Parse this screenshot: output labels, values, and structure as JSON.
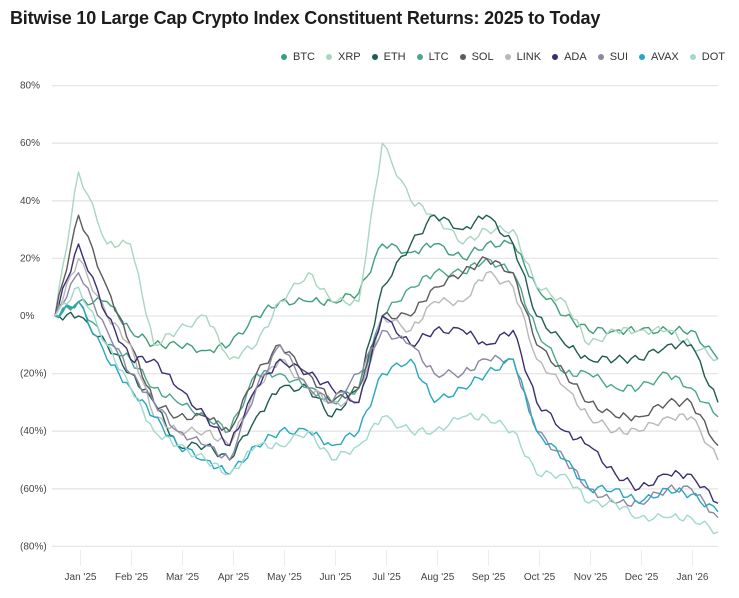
{
  "chart_data": {
    "type": "line",
    "title": "Bitwise 10 Large Cap Crypto Index Constituent Returns: 2025 to Today",
    "xlabel": "",
    "ylabel": "",
    "ylim": [
      -80,
      80
    ],
    "y_ticks": [
      80,
      60,
      40,
      20,
      0,
      -20,
      -40,
      -60,
      -80
    ],
    "y_tick_labels": [
      "80%",
      "60%",
      "40%",
      "20%",
      "0%",
      "(20%)",
      "(40%)",
      "(60%)",
      "(80%)"
    ],
    "x_tick_labels": [
      "Jan '25",
      "Feb '25",
      "Mar '25",
      "Apr '25",
      "May '25",
      "Jun '25",
      "Jul '25",
      "Aug '25",
      "Sep '25",
      "Oct '25",
      "Nov '25",
      "Dec '25",
      "Jan '26"
    ],
    "grid": "horizontal",
    "legend_position": "top-right",
    "x": [
      "2025-01-01",
      "2025-01-15",
      "2025-02-01",
      "2025-02-15",
      "2025-03-01",
      "2025-03-15",
      "2025-04-01",
      "2025-04-15",
      "2025-05-01",
      "2025-05-15",
      "2025-06-01",
      "2025-06-15",
      "2025-07-01",
      "2025-07-15",
      "2025-08-01",
      "2025-08-15",
      "2025-09-01",
      "2025-09-15",
      "2025-10-01",
      "2025-10-15",
      "2025-11-01",
      "2025-11-15",
      "2025-12-01",
      "2025-12-15",
      "2026-01-01",
      "2026-01-15",
      "2026-01-31"
    ],
    "series": [
      {
        "name": "BTC",
        "color": "#3f9e7a",
        "values": [
          0,
          5,
          5,
          -5,
          -10,
          -10,
          -12,
          -10,
          0,
          5,
          5,
          5,
          8,
          25,
          22,
          25,
          20,
          25,
          25,
          10,
          0,
          -5,
          -5,
          -5,
          -5,
          -5,
          -15
        ]
      },
      {
        "name": "XRP",
        "color": "#a9d6bf",
        "values": [
          0,
          50,
          25,
          25,
          -10,
          -5,
          0,
          -15,
          -10,
          5,
          15,
          5,
          5,
          60,
          40,
          35,
          25,
          30,
          30,
          10,
          5,
          -10,
          -5,
          -5,
          -5,
          -10,
          -15
        ]
      },
      {
        "name": "ETH",
        "color": "#1e5c52",
        "values": [
          0,
          0,
          -10,
          -20,
          -30,
          -45,
          -45,
          -50,
          -35,
          -25,
          -25,
          -35,
          -25,
          10,
          25,
          35,
          30,
          35,
          25,
          0,
          -10,
          -15,
          -15,
          -15,
          -10,
          -10,
          -30
        ]
      },
      {
        "name": "LTC",
        "color": "#4aa68c",
        "values": [
          0,
          5,
          -10,
          -15,
          -25,
          -30,
          -35,
          -40,
          -20,
          -20,
          -25,
          -30,
          -25,
          0,
          10,
          15,
          15,
          20,
          15,
          -5,
          -20,
          -20,
          -25,
          -25,
          -20,
          -25,
          -35
        ]
      },
      {
        "name": "SOL",
        "color": "#5b5b5b",
        "values": [
          0,
          35,
          10,
          -10,
          -30,
          -35,
          -35,
          -40,
          -20,
          -10,
          -20,
          -30,
          -25,
          0,
          0,
          10,
          15,
          20,
          15,
          -10,
          -20,
          -30,
          -35,
          -35,
          -30,
          -30,
          -45
        ]
      },
      {
        "name": "LINK",
        "color": "#b8b8b8",
        "values": [
          0,
          20,
          0,
          -10,
          -35,
          -40,
          -40,
          -45,
          -25,
          -15,
          -25,
          -30,
          -30,
          0,
          -5,
          5,
          5,
          15,
          10,
          -15,
          -25,
          -35,
          -40,
          -40,
          -35,
          -35,
          -50
        ]
      },
      {
        "name": "ADA",
        "color": "#3d2e73",
        "values": [
          0,
          25,
          0,
          -15,
          -15,
          -25,
          -35,
          -45,
          -25,
          -15,
          -20,
          -25,
          -30,
          0,
          -10,
          -5,
          -5,
          -10,
          -5,
          -30,
          -40,
          -45,
          -55,
          -60,
          -55,
          -55,
          -65
        ]
      },
      {
        "name": "SUI",
        "color": "#8b87a3",
        "values": [
          0,
          15,
          -5,
          -20,
          -30,
          -40,
          -45,
          -50,
          -25,
          -10,
          -25,
          -30,
          -20,
          -5,
          -10,
          -20,
          -20,
          -15,
          -15,
          -40,
          -50,
          -60,
          -65,
          -65,
          -60,
          -60,
          -70
        ]
      },
      {
        "name": "AVAX",
        "color": "#26a7c1",
        "values": [
          0,
          5,
          -15,
          -25,
          -35,
          -45,
          -50,
          -55,
          -45,
          -40,
          -40,
          -45,
          -40,
          -20,
          -15,
          -30,
          -25,
          -20,
          -15,
          -40,
          -50,
          -60,
          -60,
          -65,
          -60,
          -62,
          -68
        ]
      },
      {
        "name": "DOT",
        "color": "#9fd9cf",
        "values": [
          0,
          10,
          -10,
          -25,
          -40,
          -45,
          -50,
          -55,
          -45,
          -45,
          -40,
          -50,
          -45,
          -35,
          -40,
          -40,
          -35,
          -35,
          -40,
          -55,
          -55,
          -65,
          -65,
          -70,
          -70,
          -70,
          -75
        ]
      }
    ]
  }
}
